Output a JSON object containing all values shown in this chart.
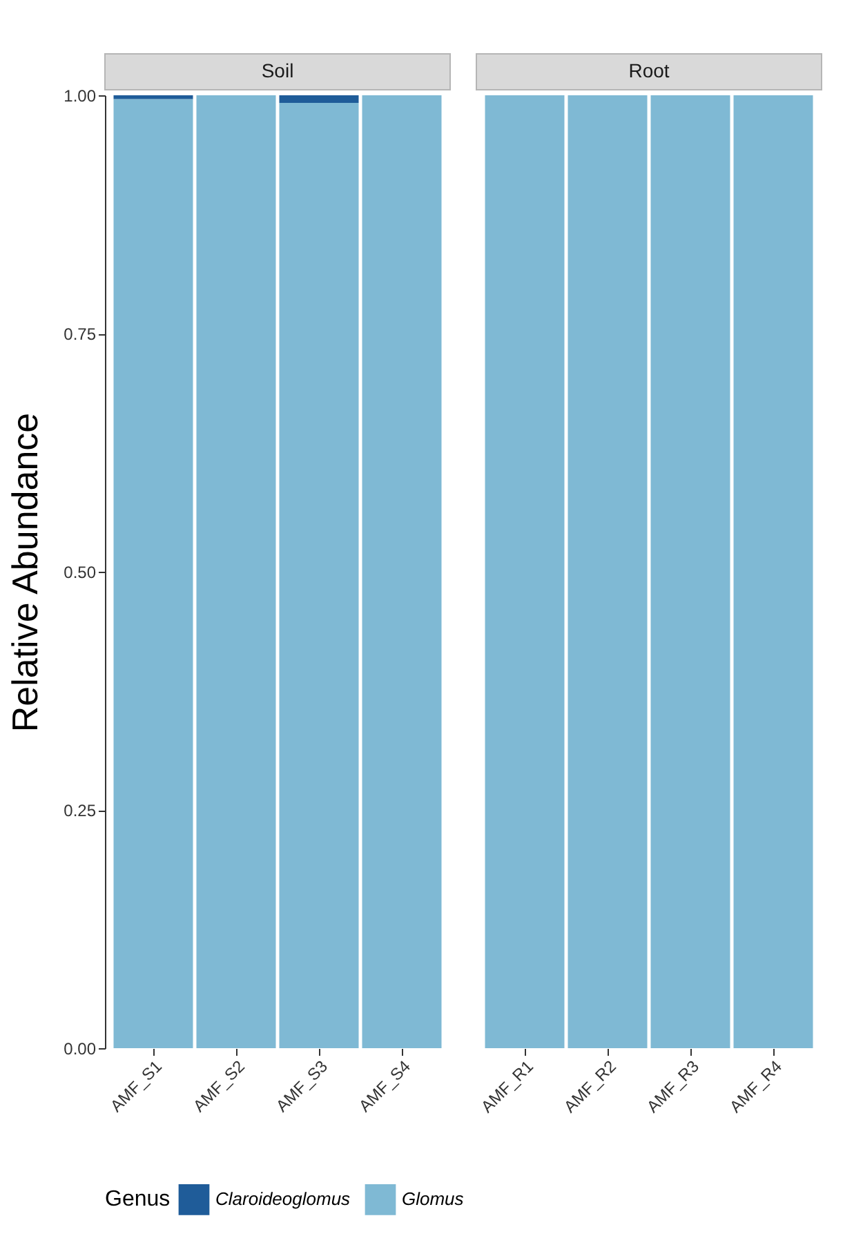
{
  "chart_data": [
    {
      "type": "bar",
      "title": "Soil",
      "ylabel": "Relative Abundance",
      "legend_title": "Genus",
      "legend": "bottom",
      "stacked": true,
      "categories": [
        "AMF_S1",
        "AMF_S2",
        "AMF_S3",
        "AMF_S4"
      ],
      "series": [
        {
          "name": "Glomus",
          "color": "#7fb9d4",
          "values": [
            0.996,
            1.0,
            0.992,
            1.0
          ]
        },
        {
          "name": "Claroideoglomus",
          "color": "#1f5c99",
          "values": [
            0.004,
            0.0,
            0.008,
            0.0
          ]
        }
      ],
      "ylim": [
        0,
        1.0
      ],
      "yticks": [
        {
          "value": 0,
          "label": "0.00"
        },
        {
          "value": 0.25,
          "label": "0.25"
        },
        {
          "value": 0.5,
          "label": "0.50"
        },
        {
          "value": 0.75,
          "label": "0.75"
        },
        {
          "value": 1.0,
          "label": "1.00"
        }
      ],
      "grid": false
    },
    {
      "type": "bar",
      "title": "Root",
      "stacked": true,
      "tick_labels": "x",
      "categories": [
        "AMF_R1",
        "AMF_R2",
        "AMF_R3",
        "AMF_R4"
      ],
      "series": [
        {
          "color": "#7fb9d4",
          "values": [
            1.0,
            1.0,
            1.0,
            1.0
          ]
        },
        {
          "color": "#1f5c99",
          "values": [
            0.0,
            0.0,
            0.0,
            0.0
          ]
        }
      ],
      "ylim": [
        0,
        1.0
      ],
      "grid": false
    }
  ]
}
